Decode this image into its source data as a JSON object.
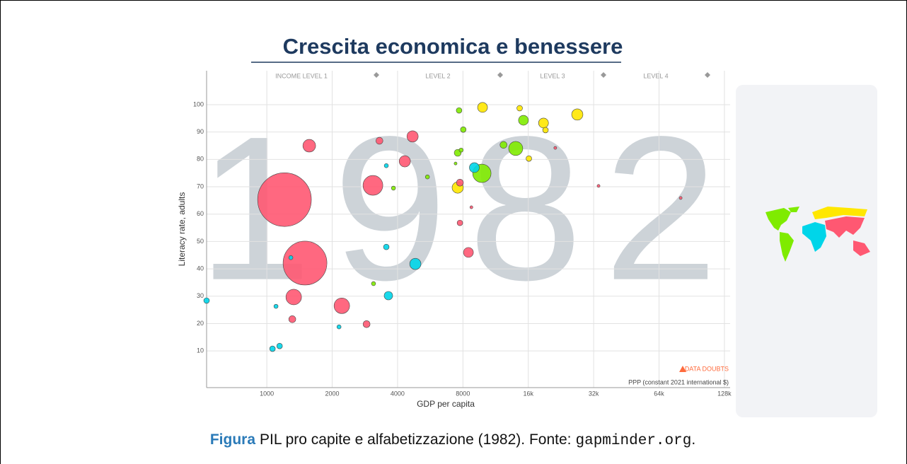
{
  "chart_data": {
    "type": "scatter",
    "title": "Crescita economica e benessere",
    "watermark": "1982",
    "xlabel": "GDP per capita",
    "ylabel": "Literacy rate, adults",
    "x_unit_note": "PPP (constant 2021 international $)",
    "data_doubts": "DATA DOUBTS",
    "income_levels": [
      "INCOME LEVEL 1",
      "LEVEL 2",
      "LEVEL 3",
      "LEVEL 4"
    ],
    "xscale": "log",
    "xlim": [
      528,
      136000
    ],
    "xticks": [
      1000,
      2000,
      4000,
      8000,
      {
        "value": 16000,
        "label": "16k"
      },
      {
        "value": 32000,
        "label": "32k"
      },
      {
        "value": 64000,
        "label": "64k"
      },
      {
        "value": 128000,
        "label": "128k"
      }
    ],
    "ylim": [
      -3.4,
      112.4
    ],
    "yticks": [
      10,
      20,
      30,
      40,
      50,
      60,
      70,
      80,
      90,
      100
    ],
    "grid": true,
    "x": [
      1206,
      1499,
      3080,
      9780,
      1568,
      1330,
      2215,
      14000,
      4320,
      4690,
      8480,
      26900,
      4830,
      7570,
      9850,
      18800,
      9030,
      15200,
      3630,
      1310,
      2880,
      3300,
      7750,
      12300,
      7570,
      7750,
      3550,
      8030,
      7680,
      19200,
      14600,
      16100,
      528,
      1062,
      1145,
      1102,
      1290,
      2150,
      3550,
      5490,
      3830,
      3100,
      7850,
      7400,
      8750,
      21300,
      33700,
      80500
    ],
    "values": [
      65.3,
      42.1,
      70.5,
      74.9,
      85,
      29.7,
      26.5,
      84,
      79.3,
      88.4,
      46,
      96.4,
      41.8,
      69.7,
      99,
      93.3,
      77,
      94.3,
      30.2,
      21.6,
      19.8,
      86.8,
      71.5,
      85.3,
      82.4,
      56.8,
      48,
      90.9,
      97.9,
      90.7,
      98.7,
      80.3,
      28.4,
      10.8,
      11.8,
      26.3,
      44.1,
      18.8,
      77.7,
      73.6,
      69.5,
      34.6,
      83.4,
      78.5,
      62.5,
      84.2,
      70.3,
      65.9
    ],
    "sizes": [
      1000,
      667,
      136,
      117,
      56,
      84,
      84,
      69,
      44,
      44,
      34,
      44,
      44,
      44,
      34,
      34,
      34,
      34,
      25,
      17,
      17,
      17,
      17,
      17,
      17,
      11,
      11,
      11,
      11,
      11,
      11,
      11,
      11,
      11,
      11,
      6,
      6,
      6,
      6,
      6,
      6,
      6,
      6,
      3,
      3,
      3,
      3,
      3
    ],
    "colors": [
      "#ff5872",
      "#ff5872",
      "#ff5872",
      "#7feb00",
      "#ff5872",
      "#ff5872",
      "#ff5872",
      "#7feb00",
      "#ff5872",
      "#ff5872",
      "#ff5872",
      "#ffe700",
      "#00d5e9",
      "#ffe700",
      "#ffe700",
      "#ffe700",
      "#00d5e9",
      "#7feb00",
      "#00d5e9",
      "#ff5872",
      "#ff5872",
      "#ff5872",
      "#ff5872",
      "#7feb00",
      "#7feb00",
      "#ff5872",
      "#00d5e9",
      "#7feb00",
      "#7feb00",
      "#ffe700",
      "#ffe700",
      "#ffe700",
      "#00d5e9",
      "#00d5e9",
      "#00d5e9",
      "#00d5e9",
      "#00d5e9",
      "#00d5e9",
      "#00d5e9",
      "#7feb00",
      "#7feb00",
      "#7feb00",
      "#7feb00",
      "#7feb00",
      "#ff5872",
      "#ff5872",
      "#ff5872",
      "#ff5872"
    ],
    "caption": {
      "label": "Figura",
      "text": "PIL pro capite e alfabetizzazione (1982). Fonte:",
      "source": "gapminder.org",
      "end": "."
    }
  }
}
